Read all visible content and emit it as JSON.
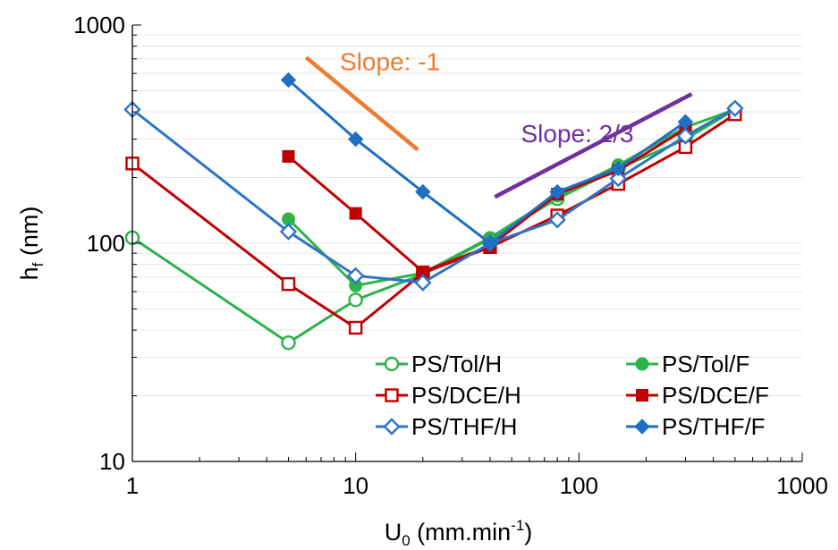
{
  "chart_data": {
    "type": "line",
    "x_scale": "log",
    "y_scale": "log",
    "xlim": [
      1,
      1000
    ],
    "ylim": [
      10,
      1000
    ],
    "x_ticks": [
      1,
      10,
      100,
      1000
    ],
    "y_ticks": [
      10,
      100,
      1000
    ],
    "x_tick_labels": [
      "1",
      "10",
      "100",
      "1000"
    ],
    "y_tick_labels": [
      "10",
      "100",
      "1000"
    ],
    "xlabel": {
      "main": "U",
      "sub": "0",
      "rest": " (mm.min",
      "sup": "-1",
      "close": ")"
    },
    "ylabel": {
      "main": "h",
      "sub": "f",
      "rest": " (nm)"
    },
    "grid": "horizontal-minor",
    "legend_position": "bottom-right",
    "series": [
      {
        "name": "PS/Tol/H",
        "color": "#2db34a",
        "marker": "circle",
        "filled": false,
        "x": [
          1,
          5,
          10,
          20,
          40,
          80,
          150,
          300,
          500
        ],
        "y": [
          106,
          35,
          55,
          72,
          105,
          160,
          220,
          300,
          410
        ]
      },
      {
        "name": "PS/Tol/F",
        "color": "#2db34a",
        "marker": "circle",
        "filled": true,
        "x": [
          5,
          10,
          20,
          40,
          80,
          150,
          300,
          500
        ],
        "y": [
          129,
          64,
          73,
          106,
          165,
          228,
          340,
          410
        ]
      },
      {
        "name": "PS/DCE/H",
        "color": "#c00000",
        "marker": "square",
        "filled": false,
        "x": [
          1,
          5,
          10,
          20,
          40,
          80,
          150,
          300,
          500
        ],
        "y": [
          232,
          65,
          41,
          73,
          96,
          134,
          187,
          276,
          390
        ]
      },
      {
        "name": "PS/DCE/F",
        "color": "#c00000",
        "marker": "square",
        "filled": true,
        "x": [
          5,
          10,
          20,
          40,
          80,
          150,
          300
        ],
        "y": [
          250,
          137,
          74,
          97,
          168,
          215,
          335
        ]
      },
      {
        "name": "PS/THF/H",
        "color": "#2e75c7",
        "marker": "diamond",
        "filled": false,
        "x": [
          1,
          5,
          10,
          20,
          40,
          80,
          150,
          300,
          500
        ],
        "y": [
          410,
          113,
          71,
          66,
          100,
          128,
          198,
          310,
          415
        ]
      },
      {
        "name": "PS/THF/F",
        "color": "#1f6fc5",
        "marker": "diamond",
        "filled": true,
        "x": [
          5,
          10,
          20,
          40,
          80,
          150,
          300
        ],
        "y": [
          560,
          300,
          172,
          100,
          172,
          220,
          360
        ]
      }
    ],
    "annotations": [
      {
        "text": "Slope: -1",
        "color": "#ed7d31",
        "line": {
          "x": [
            6,
            19
          ],
          "y": [
            710,
            268
          ]
        },
        "text_at": {
          "x": 8.5,
          "y": 620
        }
      },
      {
        "text": "Slope: 2/3",
        "color": "#7030a0",
        "line": {
          "x": [
            42,
            320
          ],
          "y": [
            163,
            483
          ]
        },
        "text_at": {
          "x": 55,
          "y": 290
        }
      }
    ]
  }
}
